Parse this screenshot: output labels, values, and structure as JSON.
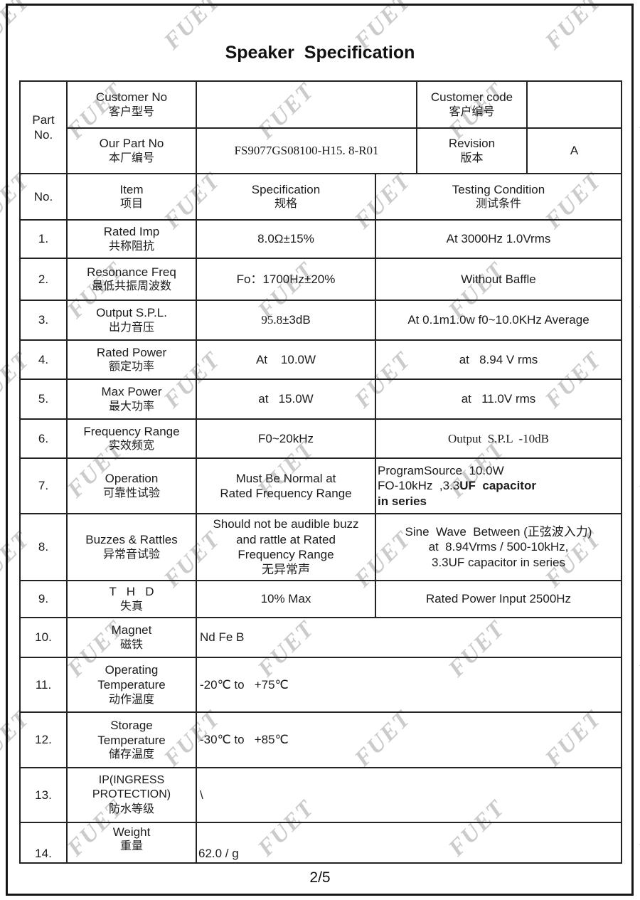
{
  "title": "Speaker  Specification",
  "watermark": {
    "text": "FUET",
    "color": "#cbcbcb"
  },
  "part_header": {
    "row_label_line1": "Part",
    "row_label_line2": "No.",
    "customer_no": {
      "en": "Customer No",
      "zh": "客户型号",
      "value": ""
    },
    "customer_code": {
      "en": "Customer code",
      "zh": "客户编号",
      "value": ""
    },
    "our_part_no": {
      "en": "Our Part No",
      "zh": "本厂编号",
      "value": "FS9077GS08100-H15. 8-R01"
    },
    "revision": {
      "en": "Revision",
      "zh": "版本",
      "value": "A"
    }
  },
  "columns": {
    "no": "No.",
    "item_en": "Item",
    "item_zh": "项目",
    "spec_en": "Specification",
    "spec_zh": "规格",
    "test_en": "Testing Condition",
    "test_zh": "测试条件"
  },
  "rows": [
    {
      "no": "1.",
      "item_en": "Rated Imp",
      "item_zh": "共称阻抗",
      "spec": "8.0Ω±15%",
      "test": "At 3000Hz 1.0Vrms"
    },
    {
      "no": "2.",
      "item_en": "Resonance Freq",
      "item_zh": "最低共振周波数",
      "spec": "Fo：1700Hz±20%",
      "test": "Without Baffle"
    },
    {
      "no": "3.",
      "item_en": "Output S.P.L.",
      "item_zh": "出力音压",
      "spec_serif": "95.8",
      "spec_rest": "±3dB",
      "test": "At 0.1m1.0w f0~10.0KHz Average"
    },
    {
      "no": "4.",
      "item_en": "Rated Power",
      "item_zh": "额定功率",
      "spec": "At    10.0W",
      "test": "at   8.94 V rms"
    },
    {
      "no": "5.",
      "item_en": "Max Power",
      "item_zh": "最大功率",
      "spec": "at   15.0W",
      "test": "at   11.0V rms"
    },
    {
      "no": "6.",
      "item_en": "Frequency Range",
      "item_zh": "实效频宽",
      "spec": "F0~20kHz",
      "test_serif": "Output  S.P.L  -10dB"
    },
    {
      "no": "7.",
      "item_en": "Operation",
      "item_zh": "可靠性试验",
      "spec": "Must Be Normal at\nRated Frequency Range",
      "test_l1": "ProgramSource  10.0W",
      "test_l2a": "FO-10kHz  ,3.3",
      "test_l2b": "UF  capacitor",
      "test_l3": "in series"
    },
    {
      "no": "8.",
      "item_en": "Buzzes & Rattles",
      "item_zh": "异常音试验",
      "spec": "Should not be audible buzz\nand rattle at Rated\nFrequency Range\n无异常声",
      "test": "Sine  Wave  Between (正弦波入力)\nat  8.94Vrms / 500-10kHz,\n3.3UF capacitor in series"
    },
    {
      "no": "9.",
      "item_en": "T   H   D",
      "item_zh": "失真",
      "spec": "10% Max",
      "test": "Rated Power Input 2500Hz"
    },
    {
      "no": "10.",
      "item_en": "Magnet",
      "item_zh": "磁铁",
      "value": "Nd Fe B"
    },
    {
      "no": "11.",
      "item_en": "Operating\nTemperature",
      "item_zh": "动作温度",
      "value": "-20℃ to   +75℃"
    },
    {
      "no": "12.",
      "item_en": "Storage\nTemperature",
      "item_zh": "储存温度",
      "value": "-30℃ to   +85℃"
    },
    {
      "no": "13.",
      "item_en": "IP(INGRESS\nPROTECTION)",
      "item_zh": "防水等级",
      "value": "\\"
    },
    {
      "no": "14.",
      "item_en": "Weight",
      "item_zh": "重量",
      "value": "62.0 / g"
    }
  ],
  "footer": {
    "page": "2/5"
  }
}
